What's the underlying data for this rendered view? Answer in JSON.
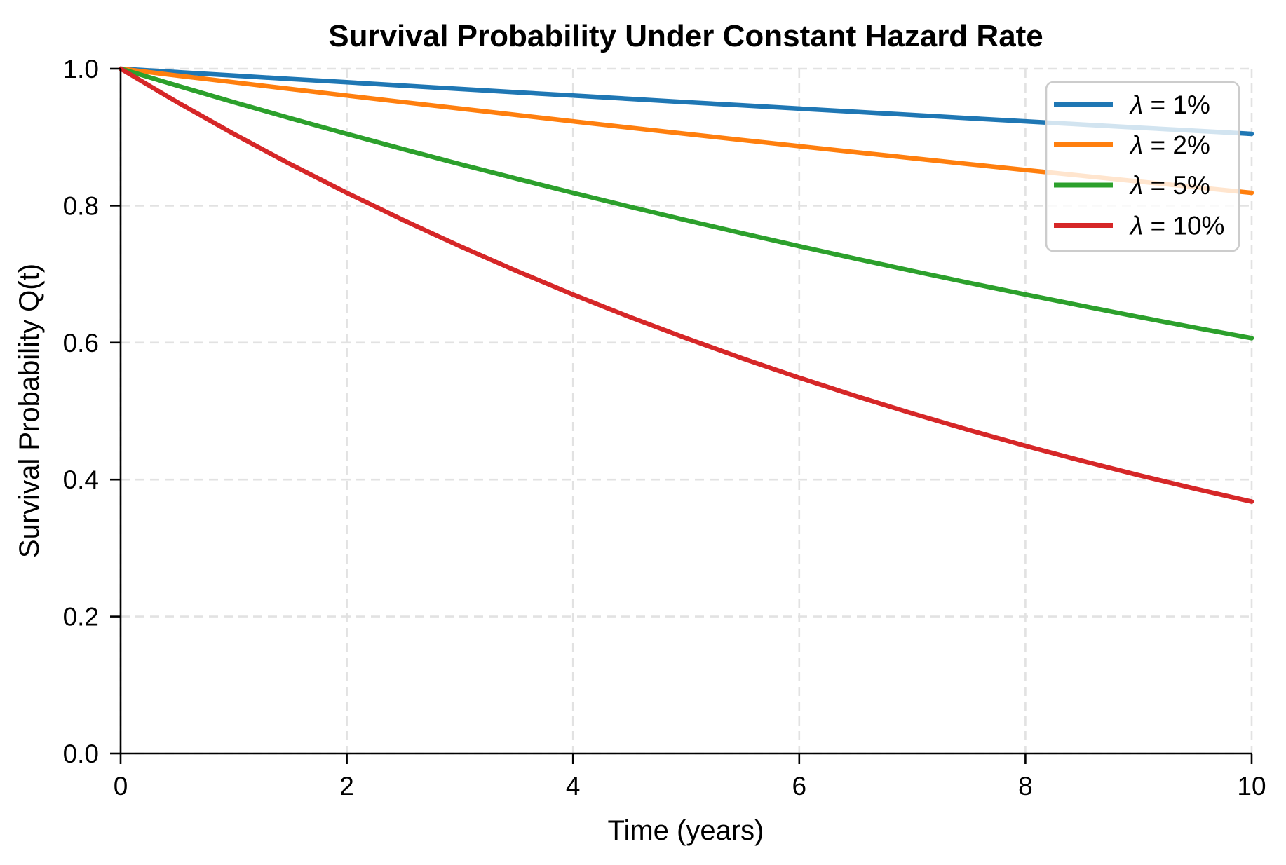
{
  "chart_data": {
    "type": "line",
    "title": "Survival Probability Under Constant Hazard Rate",
    "xlabel": "Time (years)",
    "ylabel": "Survival Probability Q(t)",
    "xlim": [
      0,
      10
    ],
    "ylim": [
      0.0,
      1.0
    ],
    "x_ticks": [
      0,
      2,
      4,
      6,
      8,
      10
    ],
    "x_tick_labels": [
      "0",
      "2",
      "4",
      "6",
      "8",
      "10"
    ],
    "y_ticks": [
      0.0,
      0.2,
      0.4,
      0.6,
      0.8,
      1.0
    ],
    "y_tick_labels": [
      "0.0",
      "0.2",
      "0.4",
      "0.6",
      "0.8",
      "1.0"
    ],
    "grid": true,
    "grid_style": "dashed",
    "grid_color": "#e2e2e2",
    "spine_color": "#000000",
    "legend_position": "upper right",
    "x": [
      0,
      0.5,
      1,
      1.5,
      2,
      2.5,
      3,
      3.5,
      4,
      4.5,
      5,
      5.5,
      6,
      6.5,
      7,
      7.5,
      8,
      8.5,
      9,
      9.5,
      10
    ],
    "series": [
      {
        "name": "λ = 1%",
        "hazard_rate_pct": 1,
        "color": "#1f77b4",
        "values": [
          1.0,
          0.995,
          0.99,
          0.9851,
          0.9802,
          0.9753,
          0.9704,
          0.9656,
          0.9608,
          0.956,
          0.9512,
          0.9465,
          0.9418,
          0.9371,
          0.9324,
          0.9277,
          0.9231,
          0.9185,
          0.9139,
          0.9094,
          0.9048
        ]
      },
      {
        "name": "λ = 2%",
        "hazard_rate_pct": 2,
        "color": "#ff7f0e",
        "values": [
          1.0,
          0.99,
          0.9802,
          0.9704,
          0.9608,
          0.9512,
          0.9418,
          0.9324,
          0.9231,
          0.9139,
          0.9048,
          0.8958,
          0.8869,
          0.8781,
          0.8694,
          0.8607,
          0.8521,
          0.8437,
          0.8353,
          0.827,
          0.8187
        ]
      },
      {
        "name": "λ = 5%",
        "hazard_rate_pct": 5,
        "color": "#2ca02c",
        "values": [
          1.0,
          0.9753,
          0.9512,
          0.9277,
          0.9048,
          0.8825,
          0.8607,
          0.8395,
          0.8187,
          0.7985,
          0.7788,
          0.7596,
          0.7408,
          0.7225,
          0.7047,
          0.6873,
          0.6703,
          0.6538,
          0.6376,
          0.6219,
          0.6065
        ]
      },
      {
        "name": "λ = 10%",
        "hazard_rate_pct": 10,
        "color": "#d62728",
        "values": [
          1.0,
          0.9512,
          0.9048,
          0.8607,
          0.8187,
          0.7788,
          0.7408,
          0.7047,
          0.6703,
          0.6376,
          0.6065,
          0.5769,
          0.5488,
          0.522,
          0.4966,
          0.4724,
          0.4493,
          0.4274,
          0.4066,
          0.3867,
          0.3679
        ]
      }
    ]
  }
}
